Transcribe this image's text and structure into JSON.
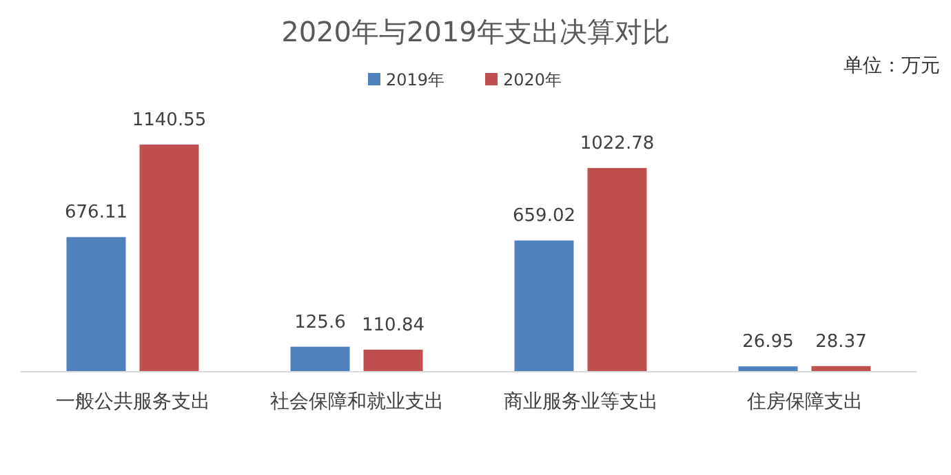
{
  "chart_data": {
    "type": "bar",
    "title": "2020年与2019年支出决算对比",
    "annotations": [
      "单位：万元"
    ],
    "categories": [
      "一般公共服务支出",
      "社会保障和就业支出",
      "商业服务业等支出",
      "住房保障支出"
    ],
    "series": [
      {
        "name": "2019年",
        "color": "#4f81bd",
        "values": [
          676.11,
          125.6,
          659.02,
          26.95
        ]
      },
      {
        "name": "2020年",
        "color": "#c0504d",
        "values": [
          1140.55,
          110.84,
          1022.78,
          28.37
        ]
      }
    ],
    "data_labels": true,
    "legend": "top"
  }
}
